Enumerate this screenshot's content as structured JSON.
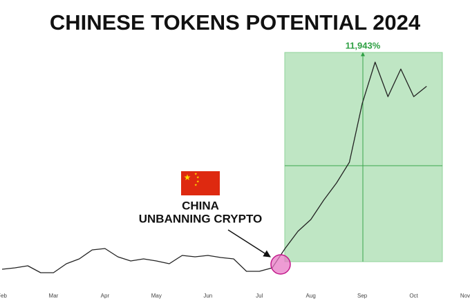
{
  "chart_data": {
    "type": "line",
    "title": "CHINESE TOKENS POTENTIAL 2024",
    "annotations": [
      "11,943%",
      "CHINA",
      "UNBANNING CRYPTO"
    ],
    "categories": [
      "Feb",
      null,
      null,
      null,
      "Mar",
      null,
      null,
      null,
      "Apr",
      null,
      null,
      null,
      "May",
      null,
      null,
      null,
      "Jun",
      null,
      null,
      null,
      "Jul",
      null,
      null,
      null,
      "Aug",
      null,
      null,
      null,
      "Sep",
      null,
      null,
      null,
      "Oct",
      null,
      null,
      null,
      "Nov"
    ],
    "series": [
      {
        "color": "#222222",
        "values": [
          46,
          48,
          51,
          41,
          41,
          54,
          61,
          74,
          76,
          64,
          58,
          61,
          58,
          54,
          66,
          64,
          66,
          63,
          61,
          43,
          43,
          48,
          76,
          101,
          118,
          146,
          171,
          201,
          286,
          346,
          296,
          336,
          296,
          311,
          null,
          null,
          null
        ]
      }
    ],
    "ylim": [
      0,
      400
    ]
  }
}
